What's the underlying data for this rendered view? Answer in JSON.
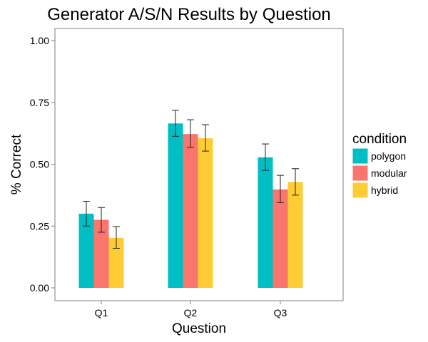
{
  "chart_data": {
    "type": "bar",
    "title": "Generator A/S/N Results by Question",
    "xlabel": "Question",
    "ylabel": "% Correct",
    "categories": [
      "Q1",
      "Q2",
      "Q3"
    ],
    "ylim": [
      0,
      1.05
    ],
    "yticks": [
      "0.00",
      "0.25",
      "0.50",
      "0.75",
      "1.00"
    ],
    "grid": false,
    "legend": {
      "title": "condition",
      "position": "right"
    },
    "series": [
      {
        "name": "polygon",
        "color": "#00BFC4",
        "values": [
          0.3,
          0.665,
          0.528
        ],
        "err_low": [
          0.25,
          0.613,
          0.475
        ],
        "err_high": [
          0.35,
          0.718,
          0.582
        ]
      },
      {
        "name": "modular",
        "color": "#F8766D",
        "values": [
          0.275,
          0.622,
          0.398
        ],
        "err_low": [
          0.225,
          0.568,
          0.345
        ],
        "err_high": [
          0.325,
          0.68,
          0.455
        ]
      },
      {
        "name": "hybrid",
        "color": "#FFCC33",
        "values": [
          0.202,
          0.605,
          0.428
        ],
        "err_low": [
          0.16,
          0.553,
          0.375
        ],
        "err_high": [
          0.248,
          0.66,
          0.482
        ]
      }
    ]
  }
}
